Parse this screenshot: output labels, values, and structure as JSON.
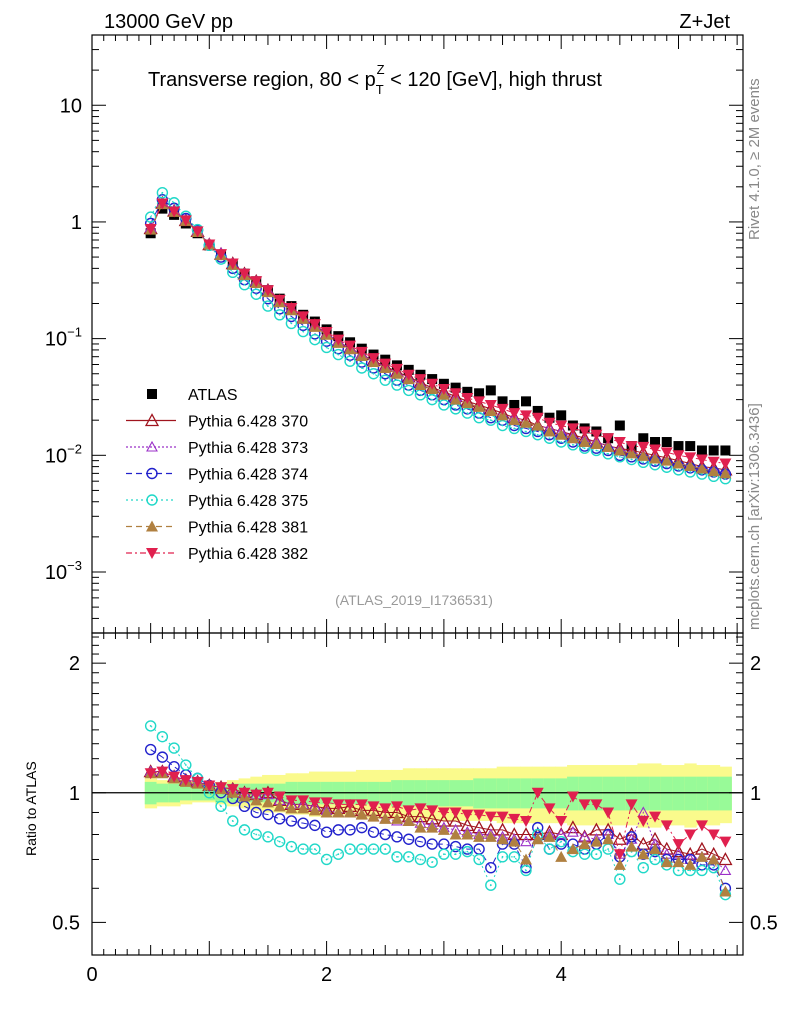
{
  "header": {
    "energy_label": "13000 GeV pp",
    "process_label": "Z+Jet",
    "title_part1": "Transverse region, 80 < p",
    "title_sup": "Z",
    "title_sub": "T",
    "title_part2": " < 120 [GeV], high thrust"
  },
  "side_labels": {
    "rivet": "Rivet 4.1.0, ≥ 2M events",
    "mcplots": "mcplots.cern.ch [arXiv:1306.3436]"
  },
  "analysis_tag": "(ATLAS_2019_I1736531)",
  "ratio_axis_label": "Ratio to ATLAS",
  "colors": {
    "ATLAS": "#000000",
    "p370": "#a0141e",
    "p373": "#9b30c8",
    "p374": "#2222cc",
    "p375": "#20d8c8",
    "p381": "#b08040",
    "p382": "#e0204e",
    "band_inner": "#98fa98",
    "band_outer": "#fafa8c"
  },
  "chart_data": [
    {
      "type": "scatter",
      "panel": "main",
      "yscale": "log",
      "xlim": [
        0,
        5.55
      ],
      "ylim": [
        0.0003,
        40
      ],
      "xlabel": "",
      "ylabel": "",
      "y_ticks": [
        {
          "value": 10,
          "base": "10",
          "exp": ""
        },
        {
          "value": 1,
          "base": "1",
          "exp": ""
        },
        {
          "value": 0.1,
          "base": "10",
          "exp": "−1"
        },
        {
          "value": 0.01,
          "base": "10",
          "exp": "−2"
        },
        {
          "value": 0.001,
          "base": "10",
          "exp": "−3"
        }
      ],
      "x": [
        0.5,
        0.6,
        0.7,
        0.8,
        0.9,
        1.0,
        1.1,
        1.2,
        1.3,
        1.4,
        1.5,
        1.6,
        1.7,
        1.8,
        1.9,
        2.0,
        2.1,
        2.2,
        2.3,
        2.4,
        2.5,
        2.6,
        2.7,
        2.8,
        2.9,
        3.0,
        3.1,
        3.2,
        3.3,
        3.4,
        3.5,
        3.6,
        3.7,
        3.8,
        3.9,
        4.0,
        4.1,
        4.2,
        4.3,
        4.4,
        4.5,
        4.6,
        4.7,
        4.8,
        4.9,
        5.0,
        5.1,
        5.2,
        5.3,
        5.4
      ],
      "series": [
        {
          "name": "ATLAS",
          "marker": "square-filled",
          "values": [
            0.8,
            1.3,
            1.15,
            0.97,
            0.8,
            0.63,
            0.52,
            0.43,
            0.36,
            0.31,
            0.26,
            0.22,
            0.19,
            0.16,
            0.14,
            0.12,
            0.105,
            0.093,
            0.082,
            0.073,
            0.066,
            0.059,
            0.054,
            0.049,
            0.045,
            0.041,
            0.038,
            0.035,
            0.034,
            0.036,
            0.029,
            0.027,
            0.029,
            0.024,
            0.021,
            0.022,
            0.018,
            0.017,
            0.016,
            0.014,
            0.018,
            0.012,
            0.014,
            0.013,
            0.013,
            0.012,
            0.012,
            0.011,
            0.011,
            0.011
          ]
        },
        {
          "name": "Pythia 6.428 370",
          "marker": "triangle-open",
          "line": "solid",
          "values": [
            0.88,
            1.45,
            1.24,
            1.03,
            0.83,
            0.64,
            0.53,
            0.44,
            0.36,
            0.31,
            0.26,
            0.21,
            0.18,
            0.15,
            0.13,
            0.11,
            0.094,
            0.083,
            0.073,
            0.065,
            0.058,
            0.052,
            0.047,
            0.042,
            0.038,
            0.035,
            0.032,
            0.029,
            0.027,
            0.025,
            0.023,
            0.021,
            0.02,
            0.018,
            0.017,
            0.016,
            0.015,
            0.014,
            0.013,
            0.012,
            0.0115,
            0.011,
            0.0105,
            0.01,
            0.0095,
            0.009,
            0.0085,
            0.008,
            0.0078,
            0.0075
          ]
        },
        {
          "name": "Pythia 6.428 373",
          "marker": "triangle-open",
          "line": "dotted",
          "values": [
            0.89,
            1.46,
            1.25,
            1.04,
            0.84,
            0.65,
            0.54,
            0.44,
            0.36,
            0.31,
            0.26,
            0.21,
            0.18,
            0.15,
            0.13,
            0.11,
            0.095,
            0.083,
            0.073,
            0.064,
            0.057,
            0.051,
            0.046,
            0.041,
            0.037,
            0.034,
            0.031,
            0.028,
            0.026,
            0.024,
            0.022,
            0.021,
            0.019,
            0.018,
            0.017,
            0.016,
            0.0145,
            0.0135,
            0.013,
            0.012,
            0.0113,
            0.0106,
            0.01,
            0.0096,
            0.009,
            0.0086,
            0.0082,
            0.0078,
            0.0075,
            0.0072
          ]
        },
        {
          "name": "Pythia 6.428 374",
          "marker": "circle-open",
          "line": "dashed",
          "values": [
            0.97,
            1.55,
            1.31,
            1.07,
            0.85,
            0.63,
            0.5,
            0.4,
            0.32,
            0.27,
            0.22,
            0.18,
            0.155,
            0.13,
            0.11,
            0.095,
            0.082,
            0.072,
            0.063,
            0.056,
            0.05,
            0.044,
            0.04,
            0.036,
            0.033,
            0.03,
            0.027,
            0.025,
            0.023,
            0.021,
            0.02,
            0.018,
            0.017,
            0.016,
            0.015,
            0.014,
            0.013,
            0.012,
            0.0115,
            0.011,
            0.01,
            0.0097,
            0.0093,
            0.0089,
            0.0085,
            0.0081,
            0.0078,
            0.0075,
            0.0072,
            0.0069
          ]
        },
        {
          "name": "Pythia 6.428 375",
          "marker": "circle-open",
          "line": "dotted",
          "values": [
            1.1,
            1.78,
            1.46,
            1.12,
            0.86,
            0.63,
            0.48,
            0.37,
            0.29,
            0.24,
            0.19,
            0.16,
            0.135,
            0.115,
            0.098,
            0.084,
            0.073,
            0.064,
            0.056,
            0.05,
            0.044,
            0.04,
            0.036,
            0.033,
            0.03,
            0.027,
            0.025,
            0.023,
            0.021,
            0.02,
            0.018,
            0.017,
            0.016,
            0.015,
            0.014,
            0.013,
            0.0123,
            0.0115,
            0.011,
            0.0103,
            0.0097,
            0.0092,
            0.0087,
            0.0083,
            0.0079,
            0.0075,
            0.0072,
            0.0069,
            0.0066,
            0.0063
          ]
        },
        {
          "name": "Pythia 6.428 381",
          "marker": "triangle-filled",
          "line": "dashed",
          "values": [
            0.86,
            1.42,
            1.22,
            1.02,
            0.82,
            0.64,
            0.52,
            0.43,
            0.35,
            0.3,
            0.25,
            0.205,
            0.175,
            0.148,
            0.126,
            0.108,
            0.092,
            0.081,
            0.071,
            0.063,
            0.056,
            0.05,
            0.045,
            0.04,
            0.037,
            0.033,
            0.03,
            0.028,
            0.026,
            0.024,
            0.022,
            0.02,
            0.019,
            0.018,
            0.016,
            0.015,
            0.014,
            0.013,
            0.0125,
            0.0118,
            0.011,
            0.0104,
            0.0099,
            0.0094,
            0.009,
            0.0085,
            0.0081,
            0.0077,
            0.0073,
            0.007
          ]
        },
        {
          "name": "Pythia 6.428 382",
          "marker": "triangle-down-filled",
          "line": "dashdot",
          "values": [
            0.87,
            1.44,
            1.23,
            1.03,
            0.83,
            0.64,
            0.53,
            0.44,
            0.36,
            0.31,
            0.26,
            0.215,
            0.183,
            0.155,
            0.133,
            0.114,
            0.098,
            0.087,
            0.077,
            0.068,
            0.061,
            0.055,
            0.049,
            0.045,
            0.041,
            0.037,
            0.034,
            0.031,
            0.029,
            0.027,
            0.025,
            0.023,
            0.022,
            0.021,
            0.019,
            0.018,
            0.017,
            0.016,
            0.015,
            0.014,
            0.013,
            0.012,
            0.0118,
            0.0112,
            0.0106,
            0.01,
            0.0096,
            0.0092,
            0.0088,
            0.0085
          ]
        }
      ]
    },
    {
      "type": "scatter",
      "panel": "ratio",
      "yscale": "log",
      "xlim": [
        0,
        5.55
      ],
      "ylim": [
        0.42,
        2.35
      ],
      "ylabel": "Ratio to ATLAS",
      "x_ticks": [
        0,
        2,
        4
      ],
      "y_ticks": [
        0.5,
        1,
        2
      ],
      "x": [
        0.5,
        0.6,
        0.7,
        0.8,
        0.9,
        1.0,
        1.1,
        1.2,
        1.3,
        1.4,
        1.5,
        1.6,
        1.7,
        1.8,
        1.9,
        2.0,
        2.1,
        2.2,
        2.3,
        2.4,
        2.5,
        2.6,
        2.7,
        2.8,
        2.9,
        3.0,
        3.1,
        3.2,
        3.3,
        3.4,
        3.5,
        3.6,
        3.7,
        3.8,
        3.9,
        4.0,
        4.1,
        4.2,
        4.3,
        4.4,
        4.5,
        4.6,
        4.7,
        4.8,
        4.9,
        5.0,
        5.1,
        5.2,
        5.3,
        5.4
      ],
      "band_inner_halfwidth": [
        0.06,
        0.05,
        0.05,
        0.04,
        0.04,
        0.04,
        0.05,
        0.05,
        0.05,
        0.05,
        0.05,
        0.05,
        0.06,
        0.06,
        0.06,
        0.06,
        0.06,
        0.06,
        0.06,
        0.06,
        0.06,
        0.07,
        0.07,
        0.07,
        0.07,
        0.07,
        0.07,
        0.07,
        0.08,
        0.08,
        0.08,
        0.08,
        0.08,
        0.08,
        0.08,
        0.08,
        0.09,
        0.09,
        0.09,
        0.09,
        0.09,
        0.09,
        0.09,
        0.09,
        0.09,
        0.09,
        0.09,
        0.09,
        0.09,
        0.09
      ],
      "band_outer_halfwidth": [
        0.08,
        0.07,
        0.07,
        0.06,
        0.05,
        0.05,
        0.06,
        0.07,
        0.08,
        0.09,
        0.1,
        0.1,
        0.11,
        0.11,
        0.12,
        0.12,
        0.12,
        0.12,
        0.13,
        0.13,
        0.13,
        0.13,
        0.14,
        0.14,
        0.14,
        0.14,
        0.14,
        0.14,
        0.14,
        0.14,
        0.15,
        0.15,
        0.15,
        0.15,
        0.15,
        0.15,
        0.16,
        0.16,
        0.16,
        0.16,
        0.16,
        0.16,
        0.17,
        0.17,
        0.16,
        0.16,
        0.17,
        0.16,
        0.16,
        0.15
      ],
      "series": [
        {
          "name": "Pythia 6.428 370",
          "values": [
            1.12,
            1.12,
            1.09,
            1.07,
            1.06,
            1.04,
            1.03,
            1.02,
            1.0,
            0.99,
            1.0,
            0.96,
            0.94,
            0.94,
            0.93,
            0.92,
            0.92,
            0.93,
            0.91,
            0.91,
            0.9,
            0.9,
            0.88,
            0.88,
            0.87,
            0.86,
            0.86,
            0.84,
            0.83,
            0.82,
            0.82,
            0.8,
            0.8,
            0.8,
            0.81,
            0.8,
            0.83,
            0.79,
            0.82,
            0.82,
            0.78,
            0.8,
            0.76,
            0.78,
            0.74,
            0.73,
            0.72,
            0.74,
            0.72,
            0.7
          ]
        },
        {
          "name": "Pythia 6.428 373",
          "values": [
            1.12,
            1.12,
            1.09,
            1.07,
            1.06,
            1.04,
            1.03,
            1.02,
            1.0,
            0.99,
            0.99,
            0.96,
            0.94,
            0.94,
            0.93,
            0.91,
            0.9,
            0.9,
            0.89,
            0.88,
            0.87,
            0.86,
            0.86,
            0.85,
            0.84,
            0.83,
            0.82,
            0.81,
            0.8,
            0.8,
            0.79,
            0.78,
            0.77,
            0.78,
            0.8,
            0.8,
            0.81,
            0.79,
            0.78,
            0.8,
            0.72,
            0.78,
            0.9,
            0.76,
            0.72,
            0.72,
            0.7,
            0.71,
            0.7,
            0.66
          ]
        },
        {
          "name": "Pythia 6.428 374",
          "values": [
            1.26,
            1.21,
            1.15,
            1.1,
            1.08,
            1.04,
            1.0,
            0.97,
            0.93,
            0.9,
            0.89,
            0.87,
            0.86,
            0.85,
            0.84,
            0.81,
            0.82,
            0.82,
            0.83,
            0.81,
            0.8,
            0.79,
            0.78,
            0.77,
            0.76,
            0.76,
            0.75,
            0.74,
            0.74,
            0.67,
            0.76,
            0.76,
            0.67,
            0.83,
            0.74,
            0.76,
            0.76,
            0.74,
            0.76,
            0.8,
            0.71,
            0.79,
            0.72,
            0.73,
            0.7,
            0.7,
            0.7,
            0.68,
            0.68,
            0.6
          ]
        },
        {
          "name": "Pythia 6.428 375",
          "values": [
            1.43,
            1.35,
            1.27,
            1.16,
            1.08,
            1.0,
            0.93,
            0.86,
            0.82,
            0.8,
            0.79,
            0.77,
            0.75,
            0.74,
            0.74,
            0.7,
            0.72,
            0.74,
            0.74,
            0.74,
            0.74,
            0.71,
            0.71,
            0.7,
            0.69,
            0.72,
            0.72,
            0.73,
            0.7,
            0.61,
            0.71,
            0.71,
            0.66,
            0.8,
            0.74,
            0.77,
            0.73,
            0.72,
            0.72,
            0.74,
            0.63,
            0.73,
            0.67,
            0.7,
            0.68,
            0.66,
            0.66,
            0.66,
            0.67,
            0.58
          ]
        },
        {
          "name": "Pythia 6.428 381",
          "values": [
            1.11,
            1.11,
            1.08,
            1.06,
            1.05,
            1.04,
            1.02,
            1.0,
            0.98,
            0.96,
            0.95,
            0.93,
            0.92,
            0.92,
            0.91,
            0.9,
            0.9,
            0.9,
            0.89,
            0.88,
            0.87,
            0.87,
            0.86,
            0.83,
            0.83,
            0.82,
            0.8,
            0.8,
            0.79,
            0.79,
            0.78,
            0.77,
            0.7,
            0.78,
            0.79,
            0.71,
            0.74,
            0.76,
            0.77,
            0.78,
            0.68,
            0.75,
            0.72,
            0.74,
            0.69,
            0.69,
            0.68,
            0.71,
            0.7,
            0.59
          ]
        },
        {
          "name": "Pythia 6.428 382",
          "values": [
            1.11,
            1.12,
            1.09,
            1.07,
            1.06,
            1.04,
            1.03,
            1.02,
            1.0,
            0.99,
            1.0,
            0.98,
            0.96,
            0.96,
            0.95,
            0.95,
            0.94,
            0.94,
            0.94,
            0.93,
            0.92,
            0.93,
            0.91,
            0.92,
            0.91,
            0.9,
            0.9,
            0.89,
            0.89,
            0.88,
            0.88,
            0.87,
            0.86,
            1.0,
            0.92,
            0.86,
            0.98,
            0.94,
            0.94,
            0.9,
            0.72,
            0.94,
            0.86,
            0.88,
            0.84,
            0.76,
            0.8,
            0.84,
            0.8,
            0.77
          ]
        }
      ]
    }
  ]
}
